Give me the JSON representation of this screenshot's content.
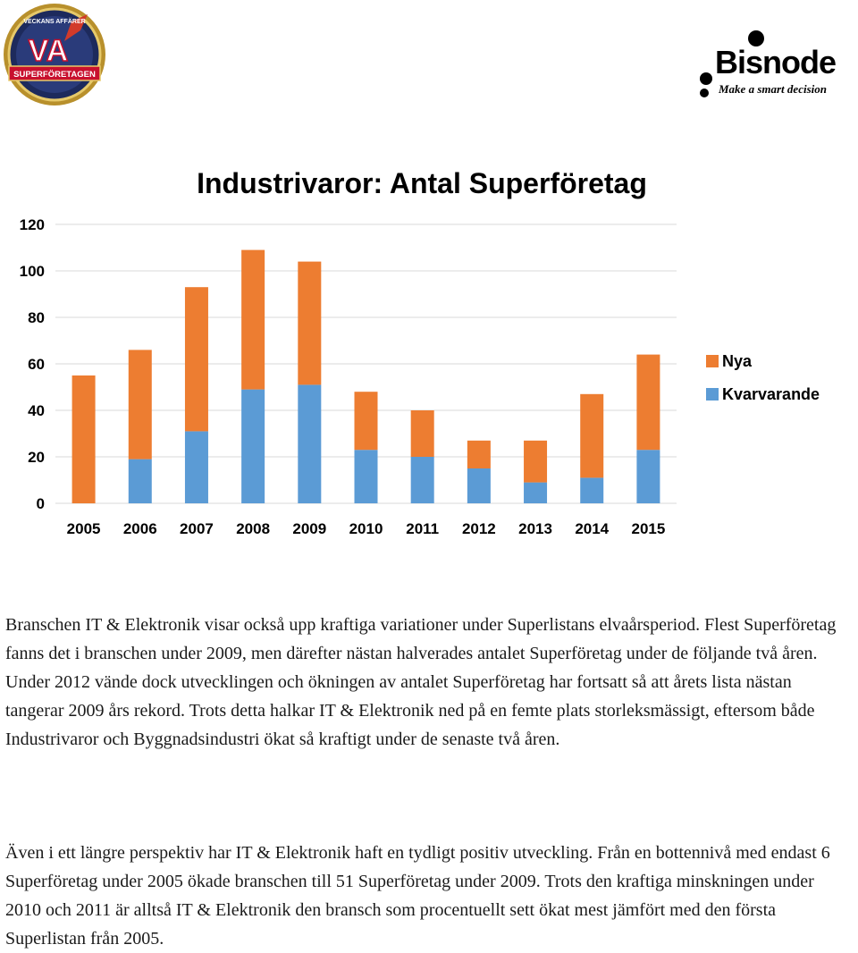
{
  "logos": {
    "badge_top": "VECKANS AFFÄRER",
    "badge_letters": "VA",
    "badge_banner": "SUPERFÖRETAGEN",
    "brand_name": "Bisnode",
    "brand_tagline": "Make a smart decision"
  },
  "colors": {
    "nya": "#ED7D31",
    "kvarvarande": "#5B9BD5",
    "grid": "#D9D9D9"
  },
  "chart_data": {
    "type": "bar",
    "stacked": true,
    "title": "Industrivaror: Antal Superföretag",
    "categories": [
      "2005",
      "2006",
      "2007",
      "2008",
      "2009",
      "2010",
      "2011",
      "2012",
      "2013",
      "2014",
      "2015"
    ],
    "series": [
      {
        "name": "Kvarvarande",
        "values": [
          0,
          19,
          31,
          49,
          51,
          23,
          20,
          15,
          9,
          11,
          23
        ]
      },
      {
        "name": "Nya",
        "values": [
          55,
          47,
          62,
          60,
          53,
          25,
          20,
          12,
          18,
          36,
          41
        ]
      }
    ],
    "ylim": [
      0,
      120
    ],
    "yticks": [
      "0",
      "20",
      "40",
      "60",
      "80",
      "100",
      "120"
    ],
    "grid": true,
    "legend": {
      "position": "right",
      "entries": [
        "Nya",
        "Kvarvarande"
      ]
    }
  },
  "text": {
    "paragraph1": "Branschen IT & Elektronik visar också upp kraftiga variationer under Superlistans elvaårsperiod. Flest Superföretag fanns det i branschen under 2009, men därefter nästan halverades antalet Superföretag under de följande två åren. Under 2012 vände dock utvecklingen och ökningen av antalet Superföretag har fortsatt så att årets lista nästan tangerar 2009 års rekord. Trots detta halkar IT & Elektronik ned på en femte plats storleksmässigt, eftersom både Industrivaror och Byggnadsindustri ökat så kraftigt under de senaste två åren.",
    "paragraph2": "Även i ett längre perspektiv har IT & Elektronik haft en tydligt positiv utveckling. Från en bottennivå med endast 6 Superföretag under 2005 ökade branschen till 51 Superföretag under 2009. Trots den kraftiga minskningen under 2010 och 2011 är alltså IT & Elektronik den bransch som procentuellt sett ökat mest jämfört med den första Superlistan från 2005."
  }
}
